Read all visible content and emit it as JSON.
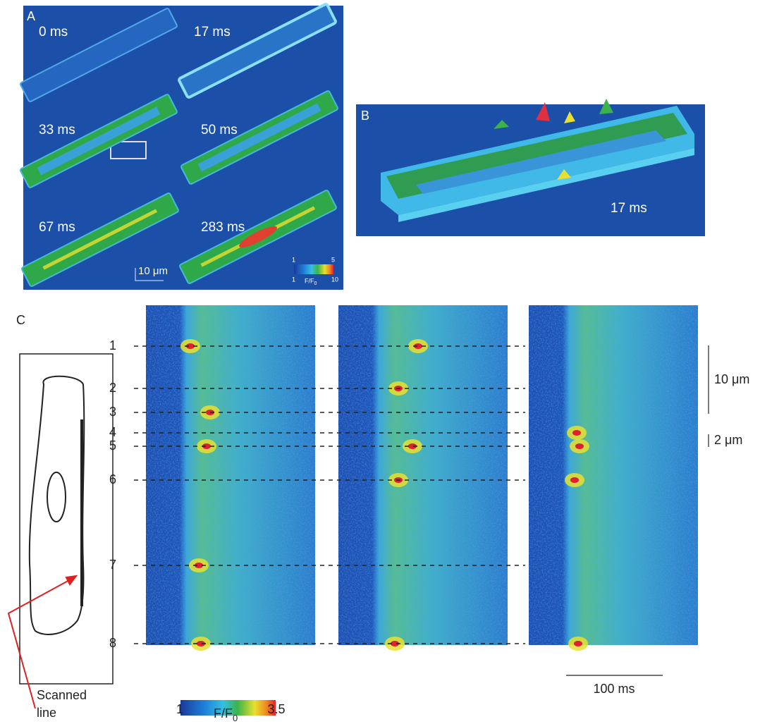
{
  "panel_a": {
    "label": "A",
    "frames": [
      "0 ms",
      "17 ms",
      "33 ms",
      "50 ms",
      "67 ms",
      "283 ms"
    ],
    "scale_bar": "10 μm",
    "colorbar": {
      "top_min": "1",
      "top_max": "5",
      "bottom_min": "1",
      "bottom_max": "10",
      "label": "F/F",
      "label_sub": "0"
    }
  },
  "panel_b": {
    "label": "B",
    "time": "17 ms"
  },
  "panel_c": {
    "label": "C",
    "rows": [
      "1",
      "2",
      "3",
      "4",
      "5",
      "6",
      "7",
      "8"
    ],
    "scale_10": "10 μm",
    "scale_2": "2 μm",
    "time_bar": "100 ms",
    "scanned_line": [
      "Scanned",
      "line"
    ],
    "colorbar": {
      "min": "1",
      "max": "3.5",
      "label": "F/F",
      "label_sub": "0"
    }
  }
}
